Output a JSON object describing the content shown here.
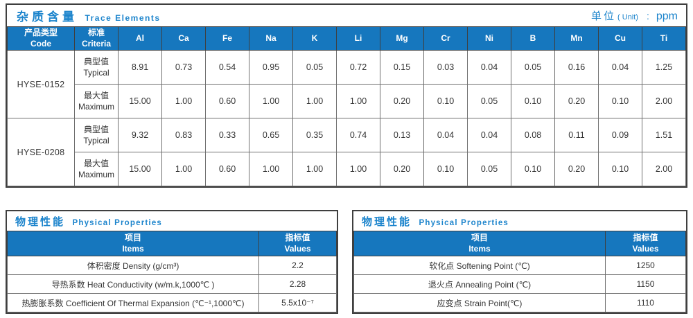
{
  "colors": {
    "header_bg": "#1677be",
    "header_text": "#ffffff",
    "title_blue": "#1c84cc",
    "border_dark": "#3f3f3f",
    "border_mid": "#6e6e6e",
    "text_dark": "#333333"
  },
  "trace": {
    "title_cn": "杂质含量",
    "title_en": "Trace Elements",
    "unit_cn": "单位",
    "unit_en": "( Unit)",
    "unit_sep": ":",
    "unit_value": "ppm",
    "col_code_cn": "产品类型",
    "col_code_en": "Code",
    "col_criteria_cn": "标准",
    "col_criteria_en": "Criteria",
    "elements": [
      "Al",
      "Ca",
      "Fe",
      "Na",
      "K",
      "Li",
      "Mg",
      "Cr",
      "Ni",
      "B",
      "Mn",
      "Cu",
      "Ti"
    ],
    "products": [
      {
        "code": "HYSE-0152",
        "rows": [
          {
            "label_cn": "典型值",
            "label_en": "Typical",
            "values": [
              "8.91",
              "0.73",
              "0.54",
              "0.95",
              "0.05",
              "0.72",
              "0.15",
              "0.03",
              "0.04",
              "0.05",
              "0.16",
              "0.04",
              "1.25"
            ]
          },
          {
            "label_cn": "最大值",
            "label_en": "Maximum",
            "values": [
              "15.00",
              "1.00",
              "0.60",
              "1.00",
              "1.00",
              "1.00",
              "0.20",
              "0.10",
              "0.05",
              "0.10",
              "0.20",
              "0.10",
              "2.00"
            ]
          }
        ]
      },
      {
        "code": "HYSE-0208",
        "rows": [
          {
            "label_cn": "典型值",
            "label_en": "Typical",
            "values": [
              "9.32",
              "0.83",
              "0.33",
              "0.65",
              "0.35",
              "0.74",
              "0.13",
              "0.04",
              "0.04",
              "0.08",
              "0.11",
              "0.09",
              "1.51"
            ]
          },
          {
            "label_cn": "最大值",
            "label_en": "Maximum",
            "values": [
              "15.00",
              "1.00",
              "0.60",
              "1.00",
              "1.00",
              "1.00",
              "0.20",
              "0.10",
              "0.05",
              "0.10",
              "0.20",
              "0.10",
              "2.00"
            ]
          }
        ]
      }
    ]
  },
  "physical_left": {
    "title_cn": "物理性能",
    "title_en": "Physical Properties",
    "col_items_cn": "项目",
    "col_items_en": "Items",
    "col_values_cn": "指标值",
    "col_values_en": "Values",
    "rows": [
      {
        "item": "体积密度 Density (g/cm³)",
        "value": "2.2"
      },
      {
        "item": "导热系数 Heat Conductivity (w/m.k,1000℃ )",
        "value": "2.28"
      },
      {
        "item": "热膨胀系数 Coefficient Of Thermal Expansion (℃⁻¹,1000℃)",
        "value": "5.5x10⁻⁷"
      }
    ]
  },
  "physical_right": {
    "title_cn": "物理性能",
    "title_en": "Physical Properties",
    "col_items_cn": "项目",
    "col_items_en": "Items",
    "col_values_cn": "指标值",
    "col_values_en": "Values",
    "rows": [
      {
        "item": "软化点 Softening Point (℃)",
        "value": "1250"
      },
      {
        "item": "退火点 Annealing Point (℃)",
        "value": "1150"
      },
      {
        "item": "应变点 Strain Point(℃)",
        "value": "1110"
      }
    ]
  }
}
